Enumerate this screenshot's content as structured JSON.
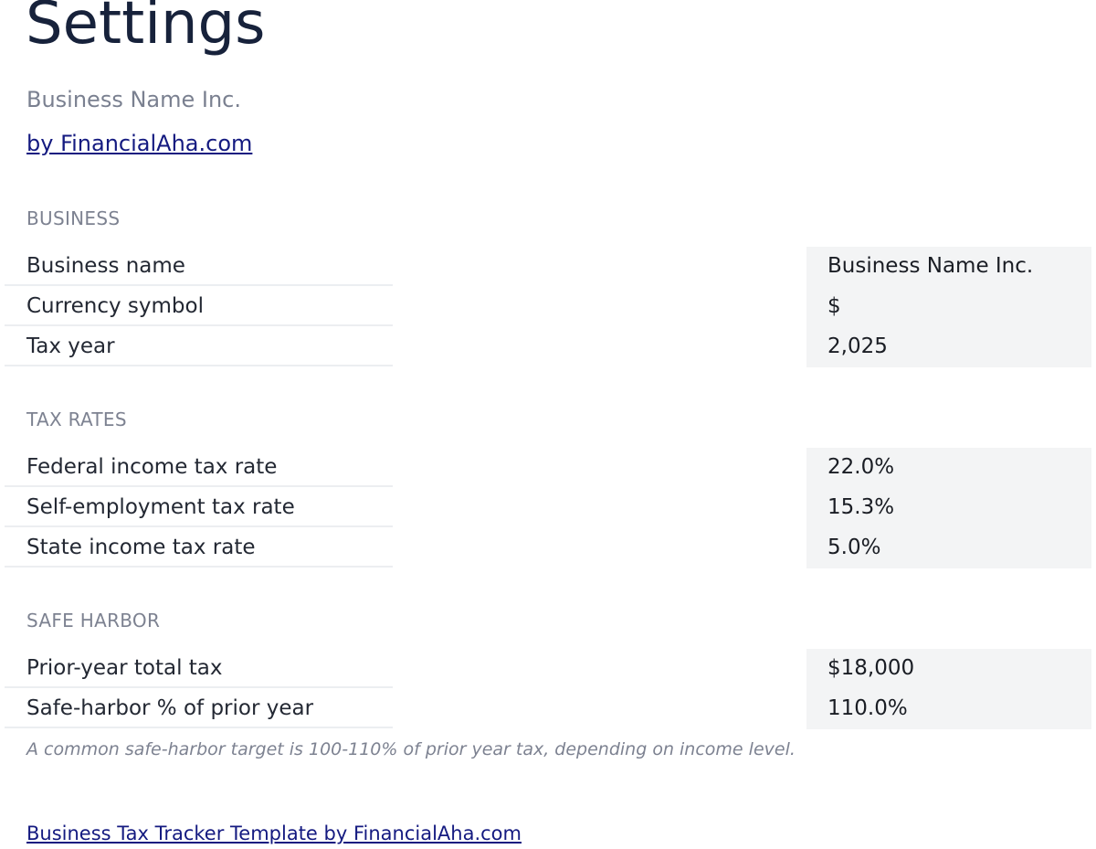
{
  "header": {
    "title": "Settings",
    "subtitle": "Business Name Inc.",
    "byline": "by FinancialAha.com"
  },
  "sections": {
    "business": {
      "heading": "BUSINESS",
      "rows": [
        {
          "label": "Business name",
          "value": "Business Name Inc."
        },
        {
          "label": "Currency symbol",
          "value": "$"
        },
        {
          "label": "Tax year",
          "value": "2,025"
        }
      ]
    },
    "tax_rates": {
      "heading": "TAX RATES",
      "rows": [
        {
          "label": "Federal income tax rate",
          "value": "22.0%"
        },
        {
          "label": "Self-employment tax rate",
          "value": "15.3%"
        },
        {
          "label": "State income tax rate",
          "value": "5.0%"
        }
      ]
    },
    "safe_harbor": {
      "heading": "SAFE HARBOR",
      "rows": [
        {
          "label": "Prior-year total tax",
          "value": "$18,000"
        },
        {
          "label": "Safe-harbor % of prior year",
          "value": "110.0%"
        }
      ],
      "note": "A common safe-harbor target is 100-110% of prior year tax, depending on income level."
    }
  },
  "footer": {
    "link": "Business Tax Tracker Template by FinancialAha.com"
  }
}
